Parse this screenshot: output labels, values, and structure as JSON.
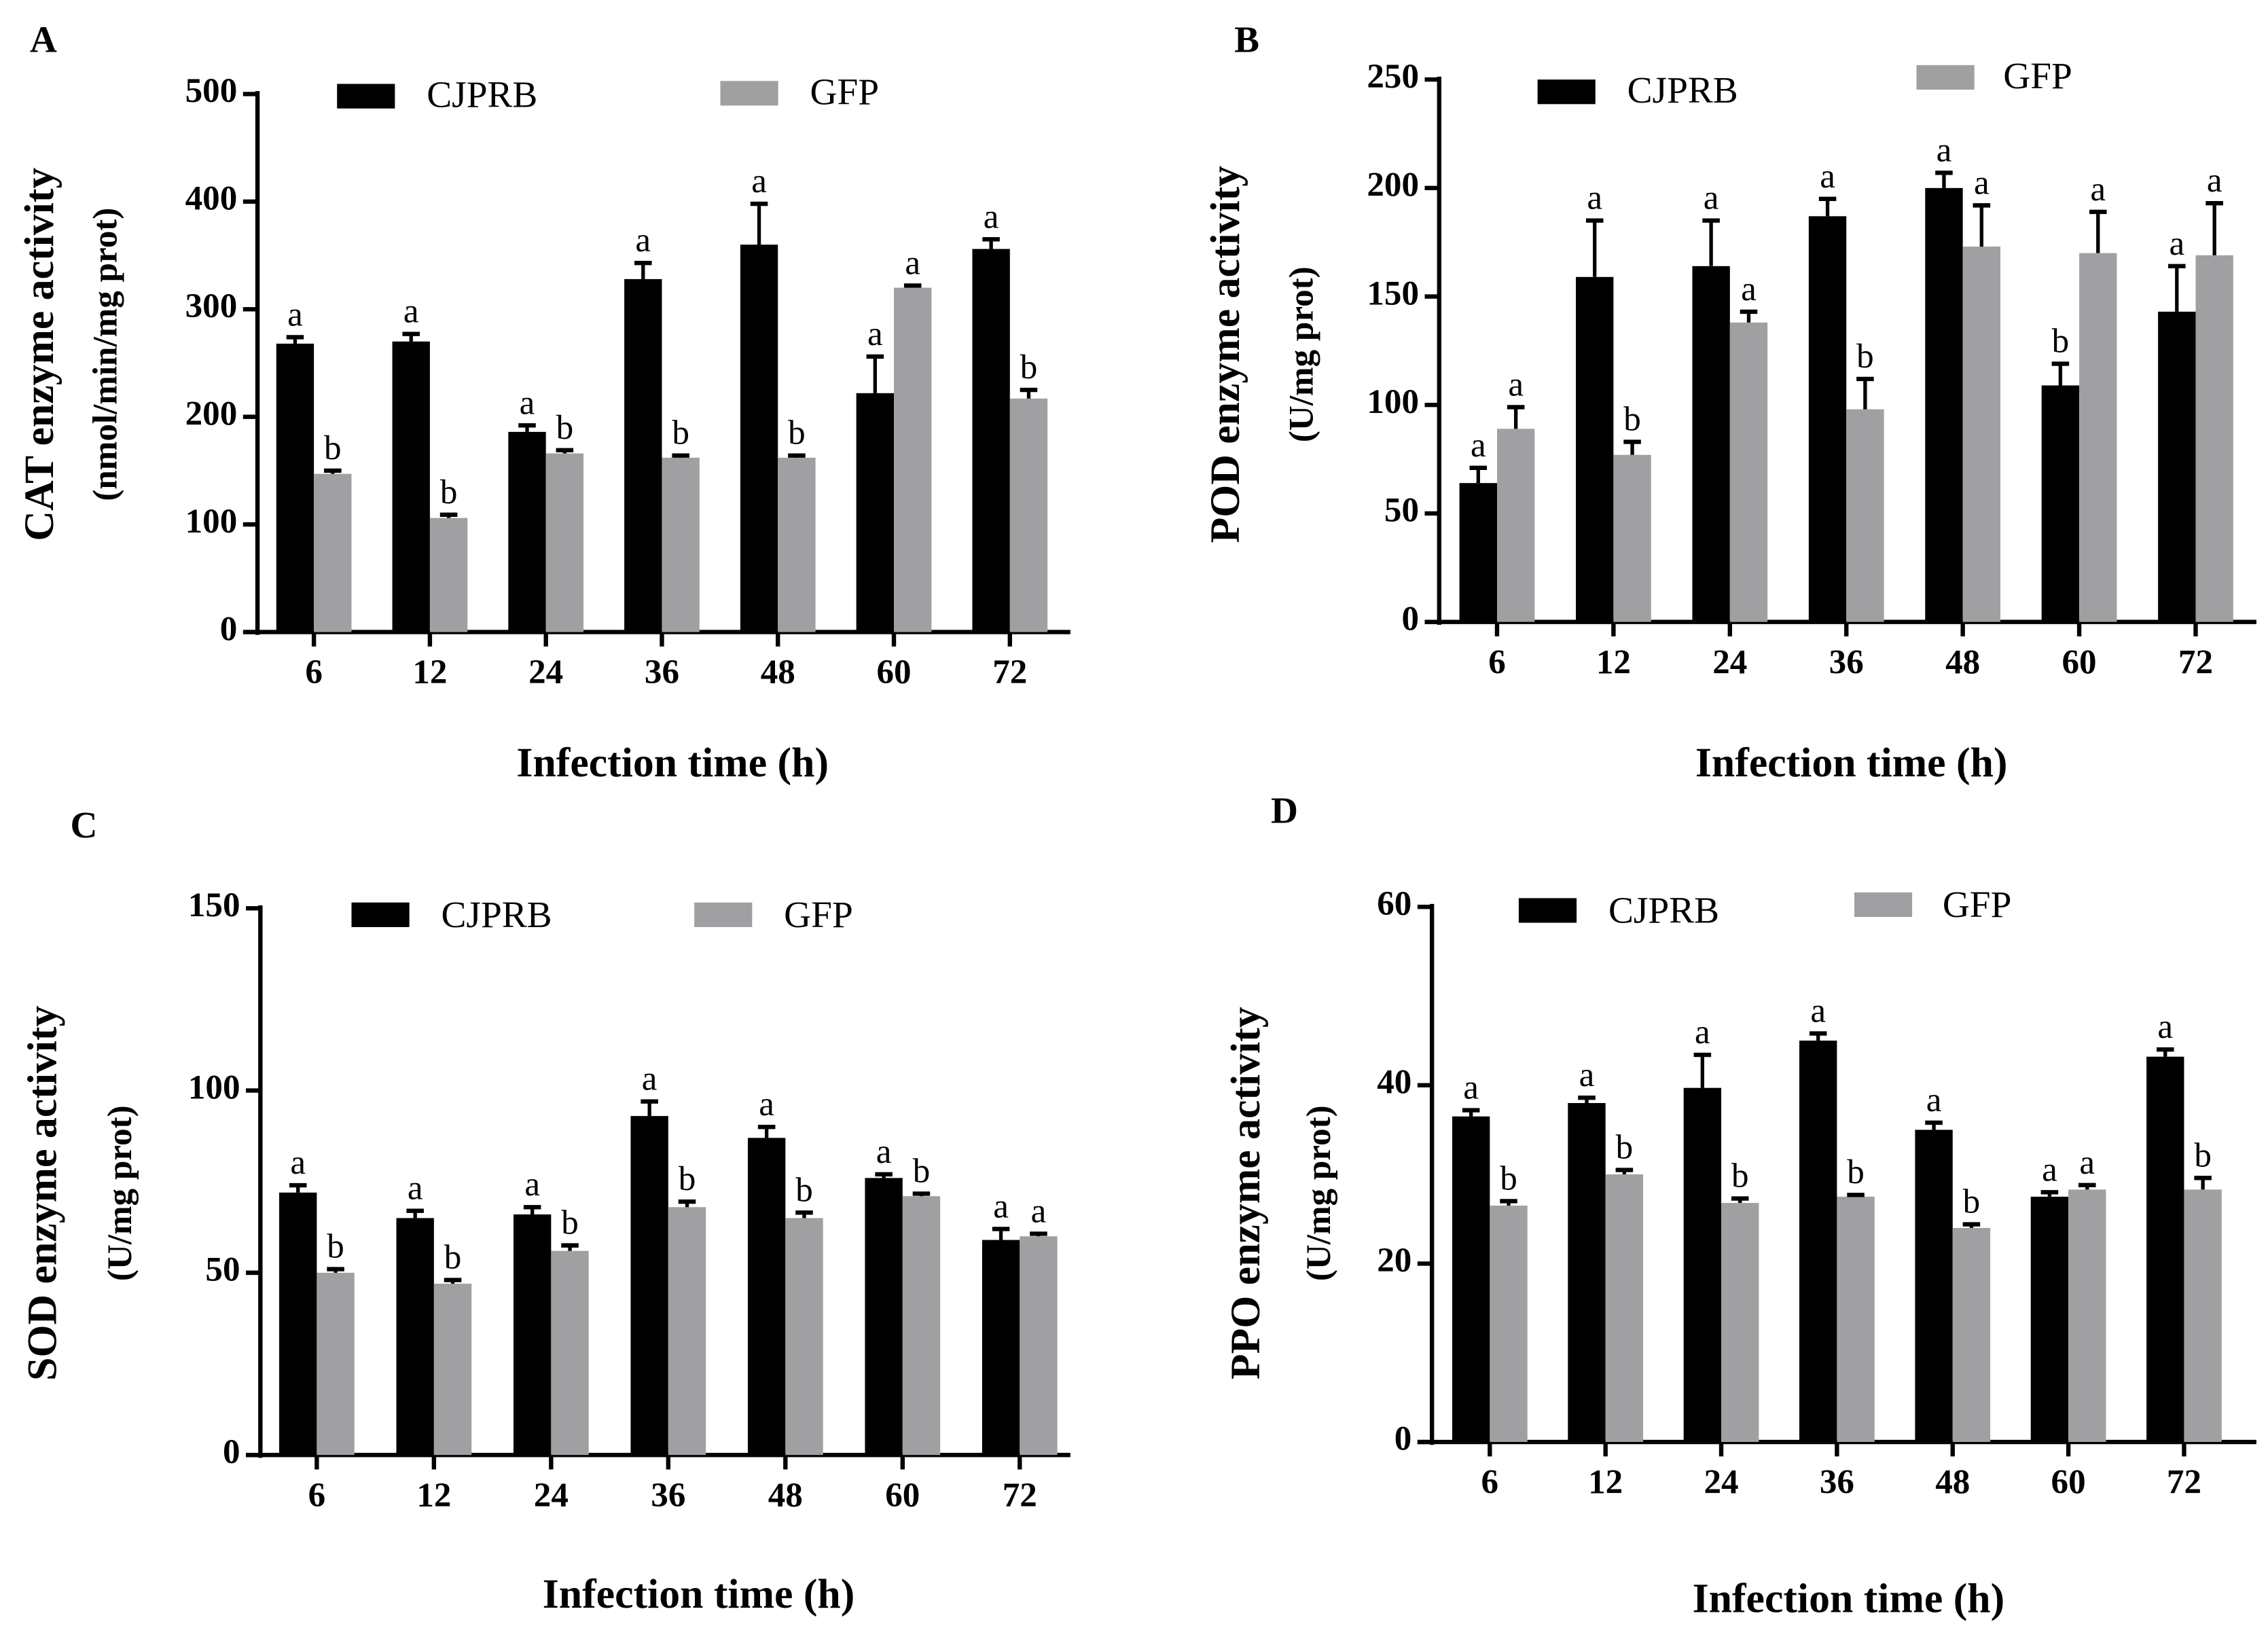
{
  "colors": {
    "CJPRB": "#000000",
    "GFP": "#a0a0a2"
  },
  "chart_data": [
    {
      "panel": "A",
      "type": "bar",
      "title": "",
      "xlabel": "Infection time (h)",
      "ylabel": "CAT enzyme activity",
      "ylabel_unit": "(nmol/min/mg prot)",
      "categories": [
        "6",
        "12",
        "24",
        "36",
        "48",
        "60",
        "72"
      ],
      "ylim": [
        0,
        500
      ],
      "yticks": [
        0,
        100,
        200,
        300,
        400,
        500
      ],
      "legend_position": "top",
      "series": [
        {
          "name": "CJPRB",
          "values": [
            268,
            270,
            186,
            328,
            360,
            222,
            356
          ],
          "errors": [
            6,
            7,
            6,
            15,
            38,
            34,
            9
          ],
          "letters": [
            "a",
            "a",
            "a",
            "a",
            "a",
            "a",
            "a"
          ]
        },
        {
          "name": "GFP",
          "values": [
            147,
            106,
            166,
            162,
            162,
            320,
            217
          ],
          "errors": [
            3,
            3,
            3,
            2,
            2,
            2,
            8
          ],
          "letters": [
            "b",
            "b",
            "b",
            "b",
            "b",
            "a",
            "b"
          ]
        }
      ]
    },
    {
      "panel": "B",
      "type": "bar",
      "xlabel": "Infection time (h)",
      "ylabel": "POD enzyme activity",
      "ylabel_unit": "(U/mg prot)",
      "categories": [
        "6",
        "12",
        "24",
        "36",
        "48",
        "60",
        "72"
      ],
      "ylim": [
        0,
        250
      ],
      "yticks": [
        0,
        50,
        100,
        150,
        200,
        250
      ],
      "legend_position": "top",
      "series": [
        {
          "name": "CJPRB",
          "values": [
            64,
            159,
            164,
            187,
            200,
            109,
            143
          ],
          "errors": [
            7,
            26,
            21,
            8,
            7,
            10,
            21
          ],
          "letters": [
            "a",
            "a",
            "a",
            "a",
            "a",
            "b",
            "a"
          ]
        },
        {
          "name": "GFP",
          "values": [
            89,
            77,
            138,
            98,
            173,
            170,
            169
          ],
          "errors": [
            10,
            6,
            5,
            14,
            19,
            19,
            24
          ],
          "letters": [
            "a",
            "b",
            "a",
            "b",
            "a",
            "a",
            "a"
          ]
        }
      ]
    },
    {
      "panel": "C",
      "type": "bar",
      "xlabel": "Infection time (h)",
      "ylabel": "SOD enzyme activity",
      "ylabel_unit": "(U/mg prot)",
      "categories": [
        "6",
        "12",
        "24",
        "36",
        "48",
        "60",
        "72"
      ],
      "ylim": [
        0,
        150
      ],
      "yticks": [
        0,
        50,
        100,
        150
      ],
      "legend_position": "top",
      "series": [
        {
          "name": "CJPRB",
          "values": [
            72,
            65,
            66,
            93,
            87,
            76,
            59
          ],
          "errors": [
            2,
            2,
            2,
            4,
            3,
            1,
            3
          ],
          "letters": [
            "a",
            "a",
            "a",
            "a",
            "a",
            "a",
            "a"
          ]
        },
        {
          "name": "GFP",
          "values": [
            50,
            47,
            56,
            68,
            65,
            71,
            60
          ],
          "errors": [
            1,
            1,
            1.5,
            1.5,
            1.5,
            0.7,
            0.7
          ],
          "letters": [
            "b",
            "b",
            "b",
            "b",
            "b",
            "b",
            "a"
          ]
        }
      ]
    },
    {
      "panel": "D",
      "type": "bar",
      "xlabel": "Infection time (h)",
      "ylabel": "PPO enzyme activity",
      "ylabel_unit": "(U/mg prot)",
      "categories": [
        "6",
        "12",
        "24",
        "36",
        "48",
        "60",
        "72"
      ],
      "ylim": [
        0,
        60
      ],
      "yticks": [
        0,
        20,
        40,
        60
      ],
      "legend_position": "top",
      "series": [
        {
          "name": "CJPRB",
          "values": [
            36.5,
            38,
            39.7,
            45,
            35,
            27.5,
            43.2
          ],
          "errors": [
            0.7,
            0.6,
            3.7,
            0.8,
            0.8,
            0.5,
            0.8
          ],
          "letters": [
            "a",
            "a",
            "a",
            "a",
            "a",
            "a",
            "a"
          ]
        },
        {
          "name": "GFP",
          "values": [
            26.5,
            30,
            26.8,
            27.5,
            24,
            28.3,
            28.3
          ],
          "errors": [
            0.5,
            0.5,
            0.5,
            0.2,
            0.4,
            0.5,
            1.3
          ],
          "letters": [
            "b",
            "b",
            "b",
            "b",
            "b",
            "a",
            "b"
          ]
        }
      ]
    }
  ]
}
